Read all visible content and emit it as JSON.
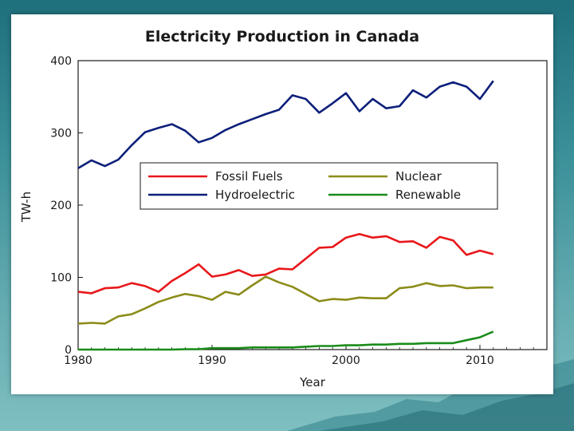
{
  "chart_data": {
    "type": "line",
    "title": "Electricity Production in Canada",
    "xlabel": "Year",
    "ylabel": "TW-h",
    "xlim": [
      1980,
      2015
    ],
    "ylim": [
      0,
      400
    ],
    "xticks": [
      1980,
      1990,
      2000,
      2010
    ],
    "yticks": [
      0,
      100,
      200,
      300,
      400
    ],
    "grid": false,
    "legend_position": "center",
    "x": [
      1980,
      1981,
      1982,
      1983,
      1984,
      1985,
      1986,
      1987,
      1988,
      1989,
      1990,
      1991,
      1992,
      1993,
      1994,
      1995,
      1996,
      1997,
      1998,
      1999,
      2000,
      2001,
      2002,
      2003,
      2004,
      2005,
      2006,
      2007,
      2008,
      2009,
      2010,
      2011
    ],
    "series": [
      {
        "name": "Fossil Fuels",
        "color": "#e8171a",
        "values": [
          80,
          78,
          85,
          86,
          92,
          88,
          80,
          95,
          106,
          118,
          101,
          104,
          110,
          102,
          104,
          112,
          111,
          126,
          141,
          142,
          155,
          160,
          155,
          157,
          149,
          150,
          141,
          156,
          151,
          131,
          137,
          132
        ]
      },
      {
        "name": "Hydroelectric",
        "color": "#0c1f7a",
        "values": [
          251,
          262,
          254,
          263,
          283,
          301,
          307,
          312,
          303,
          287,
          293,
          304,
          312,
          319,
          326,
          332,
          352,
          347,
          328,
          341,
          355,
          330,
          347,
          334,
          337,
          359,
          349,
          364,
          370,
          364,
          347,
          372
        ]
      },
      {
        "name": "Nuclear",
        "color": "#8c8c1a",
        "values": [
          36,
          37,
          36,
          46,
          49,
          57,
          66,
          72,
          77,
          74,
          69,
          80,
          76,
          89,
          101,
          93,
          87,
          77,
          67,
          70,
          69,
          72,
          71,
          71,
          85,
          87,
          92,
          88,
          89,
          85,
          86,
          86
        ]
      },
      {
        "name": "Renewable",
        "color": "#1a8c1a",
        "values": [
          0,
          0,
          0,
          0,
          0,
          0,
          0,
          0,
          0.5,
          0.5,
          2,
          2,
          2,
          3,
          3,
          3,
          3,
          4,
          5,
          5,
          6,
          6,
          7,
          7,
          8,
          8,
          9,
          9,
          9,
          13,
          17,
          25
        ]
      }
    ]
  }
}
